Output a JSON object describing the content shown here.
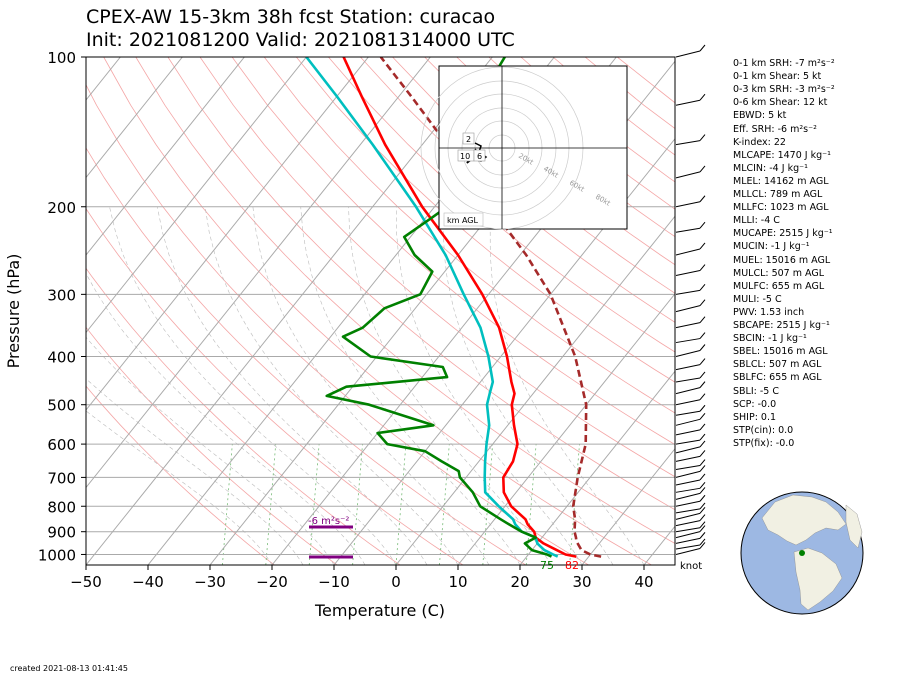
{
  "title": {
    "line1": "CPEX-AW 15-3km  38h fcst  Station: curacao",
    "line2": "Init: 2021081200  Valid: 2021081314000 UTC"
  },
  "footer": {
    "created": "created 2021-08-13 01:41:45"
  },
  "chart_data": {
    "type": "line",
    "subtype": "skew-T log-P sounding",
    "xlabel": "Temperature (C)",
    "ylabel": "Pressure (hPa)",
    "xlim": [
      -50,
      45
    ],
    "ylim": [
      1050,
      100
    ],
    "y_scale": "log",
    "x_ticks": [
      "−50",
      "−40",
      "−30",
      "−20",
      "−10",
      "0",
      "10",
      "20",
      "30",
      "40"
    ],
    "y_ticks": [
      "100",
      "200",
      "300",
      "400",
      "500",
      "600",
      "700",
      "800",
      "900",
      "1000"
    ],
    "grid": true,
    "series": [
      {
        "color": "#ff0000",
        "pressure": [
          1010,
          1000,
          980,
          950,
          925,
          900,
          870,
          850,
          800,
          750,
          700,
          650,
          600,
          550,
          500,
          475,
          450,
          400,
          350,
          300,
          250,
          200,
          150,
          120,
          100
        ],
        "values": [
          28,
          26,
          24,
          21,
          19,
          18,
          16,
          15,
          11,
          8,
          6,
          5.5,
          4,
          1,
          -2,
          -3,
          -5,
          -9,
          -14,
          -21,
          -30,
          -42,
          -56,
          -66,
          -74
        ]
      },
      {
        "color": "#00bfbf",
        "pressure": [
          1010,
          1000,
          980,
          950,
          925,
          900,
          870,
          850,
          800,
          750,
          700,
          650,
          600,
          550,
          500,
          475,
          450,
          400,
          350,
          300,
          250,
          200,
          150,
          120,
          100
        ],
        "values": [
          25,
          24,
          22,
          20,
          19,
          16,
          14,
          13,
          9,
          5,
          3,
          1,
          -1,
          -3,
          -6,
          -7,
          -8,
          -12,
          -17,
          -24,
          -32,
          -43,
          -58,
          -70,
          -80
        ]
      },
      {
        "color": "#008000",
        "pressure": [
          1010,
          1000,
          980,
          950,
          925,
          900,
          870,
          850,
          800,
          750,
          700,
          680,
          650,
          620,
          600,
          570,
          550,
          500,
          480,
          460,
          440,
          420,
          400,
          365,
          350,
          320,
          300,
          270,
          250,
          230,
          210,
          200,
          180,
          150,
          130,
          115,
          100
        ],
        "values": [
          24,
          23,
          20,
          18,
          19,
          16,
          13,
          11,
          6,
          3,
          -1,
          -2,
          -6,
          -10,
          -17,
          -20,
          -12,
          -25,
          -33,
          -31,
          -16,
          -18,
          -31,
          -38,
          -36,
          -35,
          -31,
          -32,
          -37,
          -41,
          -39,
          -38,
          -40,
          -44,
          -45,
          -47,
          -48
        ]
      },
      {
        "color": "#a52a2a",
        "dash": true,
        "pressure": [
          1010,
          1000,
          980,
          960,
          940,
          925,
          900,
          850,
          800,
          700,
          600,
          500,
          400,
          300,
          250,
          200,
          150,
          120,
          100
        ],
        "values": [
          32,
          30,
          28,
          27,
          26,
          25.5,
          24.5,
          23,
          21,
          18,
          15,
          10,
          2,
          -10,
          -19,
          -31,
          -46,
          -58,
          -68
        ]
      }
    ],
    "surface_labels": {
      "dewpoint": "75",
      "temperature": "82"
    },
    "helicity_label": "-6 m²s⁻²",
    "hodograph": {
      "label": "km AGL",
      "ring_labels": [
        "20kt",
        "40kt",
        "60kt",
        "80kt"
      ],
      "height_labels": [
        "2",
        "10",
        "6"
      ]
    },
    "wind_units": "knot"
  },
  "indices": [
    "0-1 km SRH: -7 m²s⁻²",
    "0-1 km Shear: 5 kt",
    "0-3 km SRH: -3 m²s⁻²",
    "0-6 km Shear: 12 kt",
    "EBWD: 5 kt",
    "Eff. SRH: -6 m²s⁻²",
    "K-index: 22",
    "MLCAPE: 1470 J kg⁻¹",
    "MLCIN: -4 J kg⁻¹",
    "MLEL: 14162 m AGL",
    "MLLCL: 789 m AGL",
    "MLLFC: 1023 m AGL",
    "MLLI: -4 C",
    "MUCAPE: 2515 J kg⁻¹",
    "MUCIN: -1 J kg⁻¹",
    "MUEL: 15016 m AGL",
    "MULCL: 507 m AGL",
    "MULFC: 655 m AGL",
    "MULI: -5 C",
    "PWV: 1.53 inch",
    "SBCAPE: 2515 J kg⁻¹",
    "SBCIN: -1 J kg⁻¹",
    "SBEL: 15016 m AGL",
    "SBLCL: 507 m AGL",
    "SBLFC: 655 m AGL",
    "SBLI: -5 C",
    "SCP: -0.0",
    "SHIP: 0.1",
    "STP(cin): 0.0",
    "STP(fix): -0.0"
  ]
}
